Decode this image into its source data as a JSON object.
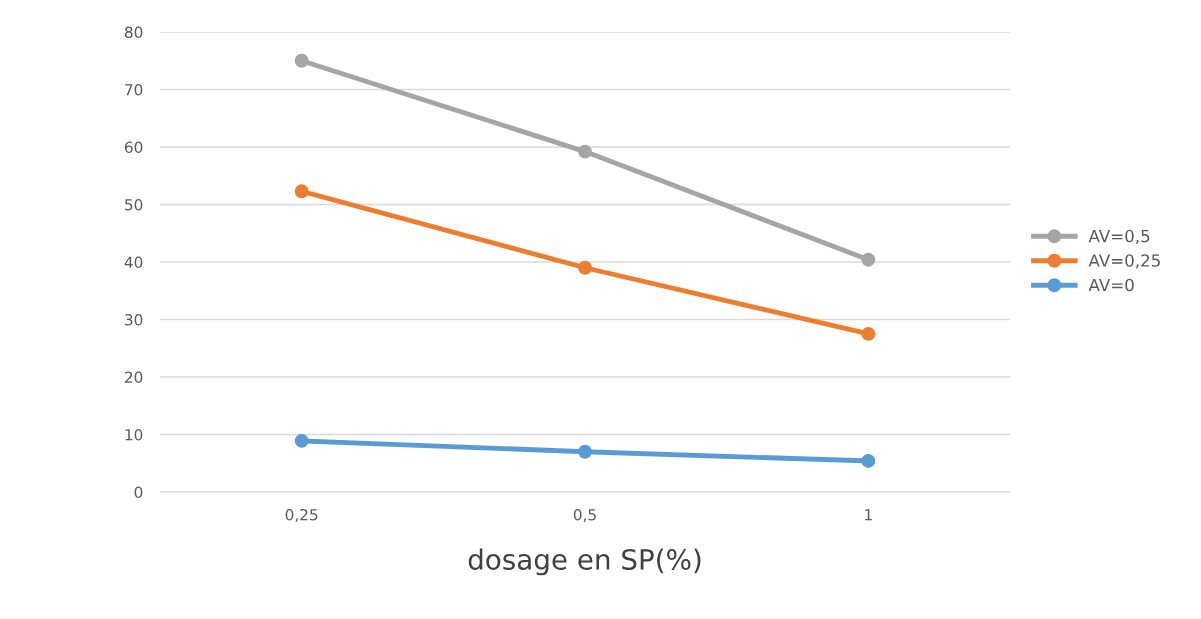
{
  "chart_data": {
    "type": "line",
    "xlabel": "dosage en SP(%)",
    "categories": [
      "0,25",
      "0,5",
      "1"
    ],
    "series": [
      {
        "name": "AV=0,5",
        "color": "#a5a5a5",
        "values": [
          75,
          59.2,
          40.4
        ]
      },
      {
        "name": "AV=0,25",
        "color": "#ed7d31",
        "values": [
          52.3,
          39.0,
          27.5
        ]
      },
      {
        "name": "AV=0",
        "color": "#5b9bd5",
        "values": [
          8.9,
          7.0,
          5.4
        ]
      }
    ],
    "ylim": [
      0,
      80
    ],
    "yticks": [
      0,
      10,
      20,
      30,
      40,
      50,
      60,
      70,
      80
    ],
    "grid": "y",
    "legend": "right",
    "marker": "circle",
    "line_style": "solid"
  }
}
